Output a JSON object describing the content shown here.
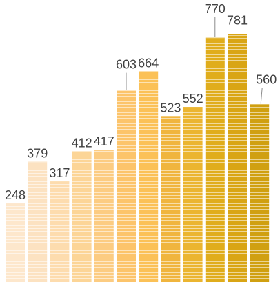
{
  "chart_data": {
    "type": "bar",
    "values": [
      248,
      379,
      317,
      412,
      417,
      603,
      664,
      523,
      552,
      770,
      781,
      560
    ],
    "labels": [
      "248",
      "379",
      "317",
      "412",
      "417",
      "603",
      "664",
      "523",
      "552",
      "770",
      "781",
      "560"
    ],
    "ylim": [
      0,
      800
    ],
    "grid": false,
    "legend": "none",
    "colors": [
      "#fde7cc",
      "#fce2c1",
      "#fddcae",
      "#fcd597",
      "#fccc82",
      "#fcc46b",
      "#fbc157",
      "#f0b53e",
      "#ebb530",
      "#e0ad1c",
      "#d9a515",
      "#d0a011"
    ]
  }
}
